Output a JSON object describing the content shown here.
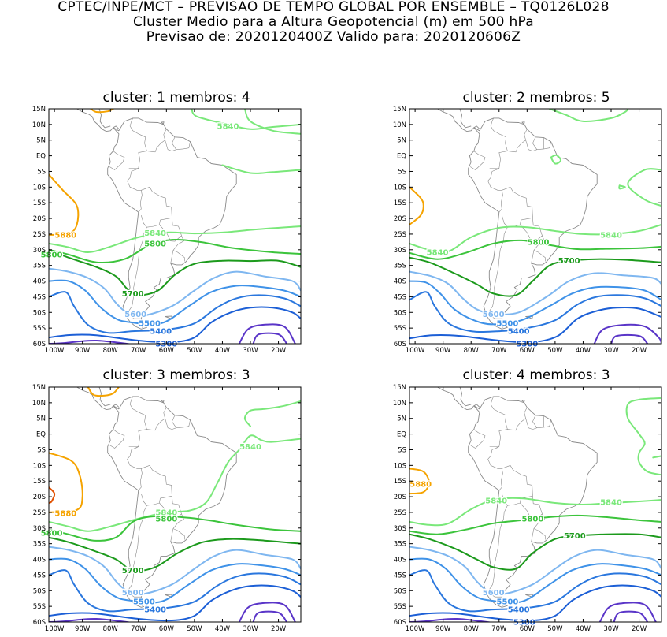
{
  "header": {
    "line1": "CPTEC/INPE/MCT – PREVISAO DE TEMPO GLOBAL POR ENSEMBLE – TQ0126L028",
    "line2": "Cluster Medio para a Altura Geopotencial (m) em 500 hPa",
    "line3": "Previsao de: 2020120400Z    Valido para: 2020120606Z"
  },
  "lat_labels": [
    "15N",
    "10N",
    "5N",
    "EQ",
    "5S",
    "10S",
    "15S",
    "20S",
    "25S",
    "30S",
    "35S",
    "40S",
    "45S",
    "50S",
    "55S",
    "60S"
  ],
  "lon_labels": [
    "100W",
    "90W",
    "80W",
    "70W",
    "60W",
    "50W",
    "40W",
    "30W",
    "20W"
  ],
  "colors": {
    "c5300": "#1c5fd6",
    "c5400": "#2a77de",
    "c5500": "#3f92e8",
    "c5600": "#7fb7f0",
    "c5700": "#1c9a1c",
    "c5800": "#3cc43c",
    "c5840": "#7ae87a",
    "c5880": "#f5a300",
    "c5920": "#e25000",
    "c5200": "#5a35c8",
    "coast": "#8a8a8a"
  },
  "panels": [
    {
      "title": "cluster: 1   membros: 4",
      "contour_labels": [
        "5840",
        "5880",
        "5840",
        "5800",
        "5800",
        "5700",
        "5600",
        "5500",
        "5400",
        "5300"
      ]
    },
    {
      "title": "cluster: 2   membros: 5",
      "contour_labels": [
        "5840",
        "5840",
        "5800",
        "5700",
        "5600",
        "5500",
        "5400",
        "5300"
      ]
    },
    {
      "title": "cluster: 3   membros: 3",
      "contour_labels": [
        "5840",
        "5880",
        "5840",
        "5800",
        "5800",
        "5700",
        "5600",
        "5500",
        "5400"
      ]
    },
    {
      "title": "cluster: 4   membros: 3",
      "contour_labels": [
        "5880",
        "5840",
        "5840",
        "5800",
        "5700",
        "5600",
        "5500",
        "5400",
        "5300"
      ]
    }
  ]
}
